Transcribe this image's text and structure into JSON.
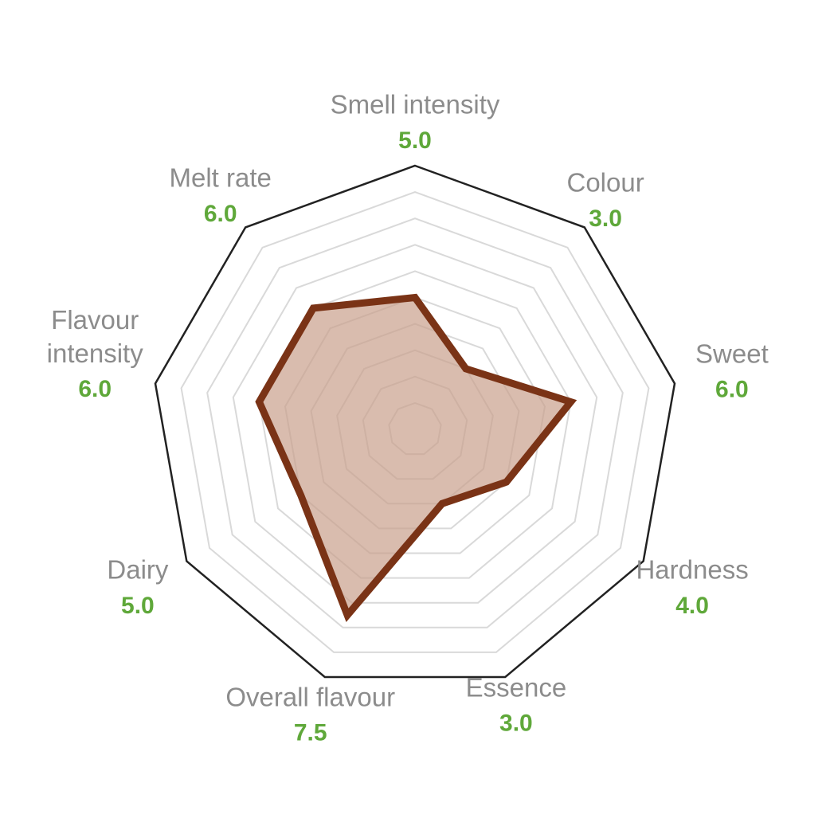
{
  "chart_data": {
    "type": "radar",
    "title": "",
    "scale_max": 10,
    "grid_levels": 9,
    "axes": [
      {
        "label": [
          "Smell intensity"
        ],
        "value_text": "5.0"
      },
      {
        "label": [
          "Colour"
        ],
        "value_text": "3.0"
      },
      {
        "label": [
          "Sweet"
        ],
        "value_text": "6.0"
      },
      {
        "label": [
          "Hardness"
        ],
        "value_text": "4.0"
      },
      {
        "label": [
          "Essence"
        ],
        "value_text": "3.0"
      },
      {
        "label": [
          "Overall flavour"
        ],
        "value_text": "7.5"
      },
      {
        "label": [
          "Dairy"
        ],
        "value_text": "5.0"
      },
      {
        "label": [
          "Flavour",
          "intensity"
        ],
        "value_text": "6.0"
      },
      {
        "label": [
          "Melt rate"
        ],
        "value_text": "6.0"
      }
    ],
    "values": [
      5.0,
      3.0,
      6.0,
      4.0,
      3.0,
      7.5,
      5.0,
      6.0,
      6.0
    ],
    "colors": {
      "outline": "#222222",
      "grid": "#d9d9d9",
      "series_stroke": "#7a3316",
      "series_fill": "#c9a08c",
      "value_text": "#5fa83a",
      "label_text": "#8c8c8c"
    }
  }
}
